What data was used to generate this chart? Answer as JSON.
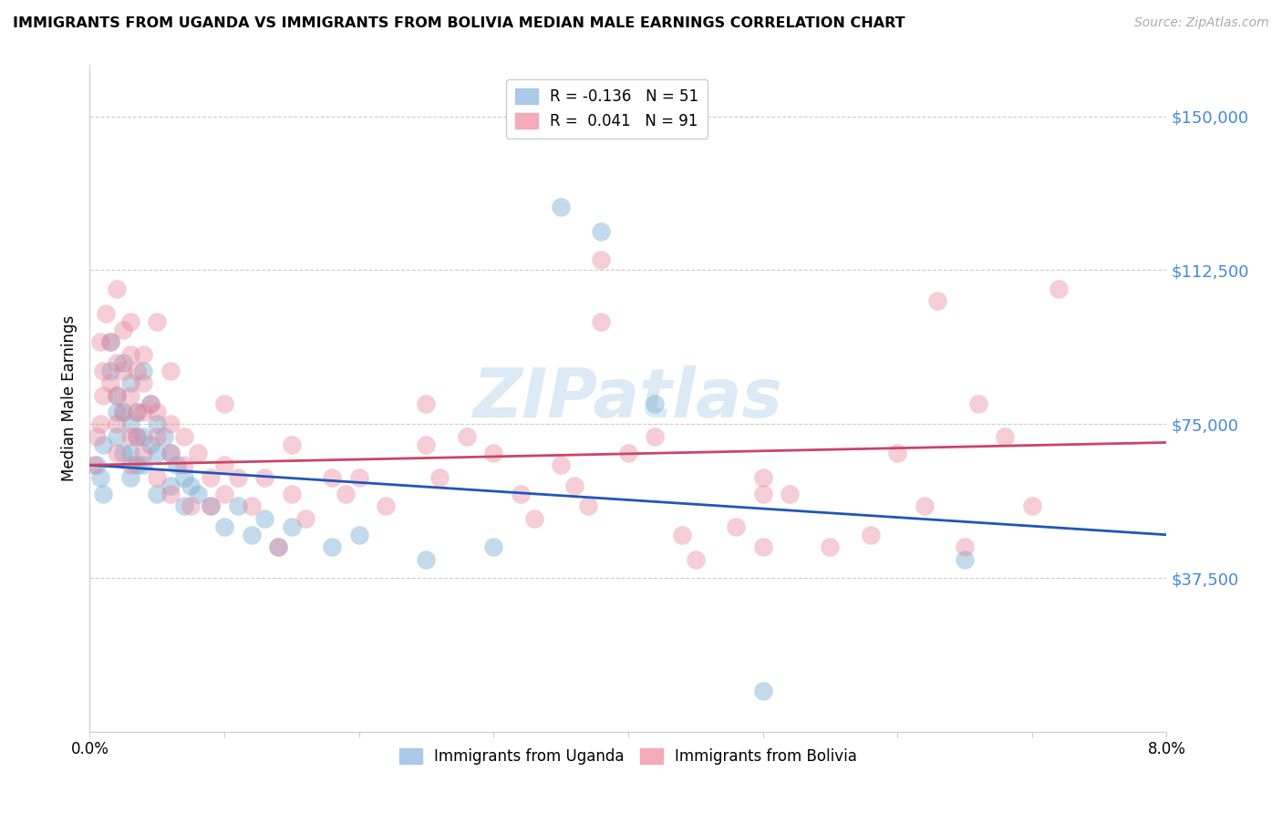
{
  "title": "IMMIGRANTS FROM UGANDA VS IMMIGRANTS FROM BOLIVIA MEDIAN MALE EARNINGS CORRELATION CHART",
  "source": "Source: ZipAtlas.com",
  "ylabel": "Median Male Earnings",
  "yticks": [
    0,
    37500,
    75000,
    112500,
    150000
  ],
  "ytick_labels": [
    "",
    "$37,500",
    "$75,000",
    "$112,500",
    "$150,000"
  ],
  "xlim": [
    0.0,
    0.08
  ],
  "ylim": [
    0,
    162500
  ],
  "uganda_color": "#7bafd4",
  "bolivia_color": "#e8829a",
  "uganda_line_color": "#2255bb",
  "bolivia_line_color": "#cc4466",
  "watermark": "ZIPatlas",
  "background_color": "#ffffff",
  "grid_color": "#cccccc",
  "ytick_color": "#4488dd",
  "uganda_points": [
    [
      0.0005,
      65000
    ],
    [
      0.0008,
      62000
    ],
    [
      0.001,
      70000
    ],
    [
      0.001,
      58000
    ],
    [
      0.0015,
      95000
    ],
    [
      0.0015,
      88000
    ],
    [
      0.002,
      82000
    ],
    [
      0.002,
      78000
    ],
    [
      0.002,
      72000
    ],
    [
      0.0025,
      90000
    ],
    [
      0.0025,
      78000
    ],
    [
      0.0025,
      68000
    ],
    [
      0.003,
      85000
    ],
    [
      0.003,
      75000
    ],
    [
      0.003,
      68000
    ],
    [
      0.003,
      62000
    ],
    [
      0.0035,
      78000
    ],
    [
      0.0035,
      72000
    ],
    [
      0.0035,
      65000
    ],
    [
      0.004,
      88000
    ],
    [
      0.004,
      72000
    ],
    [
      0.004,
      65000
    ],
    [
      0.0045,
      80000
    ],
    [
      0.0045,
      70000
    ],
    [
      0.005,
      75000
    ],
    [
      0.005,
      68000
    ],
    [
      0.005,
      58000
    ],
    [
      0.0055,
      72000
    ],
    [
      0.006,
      68000
    ],
    [
      0.006,
      60000
    ],
    [
      0.0065,
      65000
    ],
    [
      0.007,
      62000
    ],
    [
      0.007,
      55000
    ],
    [
      0.0075,
      60000
    ],
    [
      0.008,
      58000
    ],
    [
      0.009,
      55000
    ],
    [
      0.01,
      50000
    ],
    [
      0.011,
      55000
    ],
    [
      0.012,
      48000
    ],
    [
      0.013,
      52000
    ],
    [
      0.014,
      45000
    ],
    [
      0.015,
      50000
    ],
    [
      0.018,
      45000
    ],
    [
      0.02,
      48000
    ],
    [
      0.025,
      42000
    ],
    [
      0.03,
      45000
    ],
    [
      0.035,
      128000
    ],
    [
      0.038,
      122000
    ],
    [
      0.042,
      80000
    ],
    [
      0.05,
      10000
    ],
    [
      0.065,
      42000
    ]
  ],
  "bolivia_points": [
    [
      0.0003,
      65000
    ],
    [
      0.0005,
      72000
    ],
    [
      0.0008,
      95000
    ],
    [
      0.001,
      88000
    ],
    [
      0.001,
      82000
    ],
    [
      0.0012,
      102000
    ],
    [
      0.0015,
      95000
    ],
    [
      0.0015,
      85000
    ],
    [
      0.002,
      108000
    ],
    [
      0.002,
      90000
    ],
    [
      0.002,
      82000
    ],
    [
      0.002,
      75000
    ],
    [
      0.0025,
      98000
    ],
    [
      0.0025,
      88000
    ],
    [
      0.0025,
      78000
    ],
    [
      0.003,
      92000
    ],
    [
      0.003,
      82000
    ],
    [
      0.003,
      72000
    ],
    [
      0.003,
      65000
    ],
    [
      0.0035,
      88000
    ],
    [
      0.0035,
      78000
    ],
    [
      0.0035,
      72000
    ],
    [
      0.004,
      85000
    ],
    [
      0.004,
      78000
    ],
    [
      0.004,
      68000
    ],
    [
      0.0045,
      80000
    ],
    [
      0.005,
      78000
    ],
    [
      0.005,
      72000
    ],
    [
      0.005,
      62000
    ],
    [
      0.006,
      75000
    ],
    [
      0.006,
      68000
    ],
    [
      0.006,
      58000
    ],
    [
      0.007,
      72000
    ],
    [
      0.007,
      65000
    ],
    [
      0.0075,
      55000
    ],
    [
      0.008,
      68000
    ],
    [
      0.009,
      62000
    ],
    [
      0.009,
      55000
    ],
    [
      0.01,
      65000
    ],
    [
      0.01,
      58000
    ],
    [
      0.011,
      62000
    ],
    [
      0.012,
      55000
    ],
    [
      0.013,
      62000
    ],
    [
      0.014,
      45000
    ],
    [
      0.015,
      58000
    ],
    [
      0.016,
      52000
    ],
    [
      0.018,
      62000
    ],
    [
      0.019,
      58000
    ],
    [
      0.02,
      62000
    ],
    [
      0.022,
      55000
    ],
    [
      0.025,
      70000
    ],
    [
      0.026,
      62000
    ],
    [
      0.028,
      72000
    ],
    [
      0.03,
      68000
    ],
    [
      0.032,
      58000
    ],
    [
      0.033,
      52000
    ],
    [
      0.035,
      65000
    ],
    [
      0.036,
      60000
    ],
    [
      0.037,
      55000
    ],
    [
      0.038,
      115000
    ],
    [
      0.04,
      68000
    ],
    [
      0.042,
      72000
    ],
    [
      0.044,
      48000
    ],
    [
      0.045,
      42000
    ],
    [
      0.048,
      50000
    ],
    [
      0.05,
      62000
    ],
    [
      0.052,
      58000
    ],
    [
      0.055,
      45000
    ],
    [
      0.058,
      48000
    ],
    [
      0.06,
      68000
    ],
    [
      0.062,
      55000
    ],
    [
      0.063,
      105000
    ],
    [
      0.065,
      45000
    ],
    [
      0.066,
      80000
    ],
    [
      0.068,
      72000
    ],
    [
      0.07,
      55000
    ],
    [
      0.072,
      108000
    ],
    [
      0.005,
      100000
    ],
    [
      0.038,
      100000
    ],
    [
      0.05,
      45000
    ],
    [
      0.025,
      80000
    ],
    [
      0.015,
      70000
    ],
    [
      0.01,
      80000
    ],
    [
      0.006,
      88000
    ],
    [
      0.003,
      100000
    ],
    [
      0.004,
      92000
    ],
    [
      0.002,
      68000
    ],
    [
      0.0008,
      75000
    ],
    [
      0.05,
      58000
    ]
  ]
}
